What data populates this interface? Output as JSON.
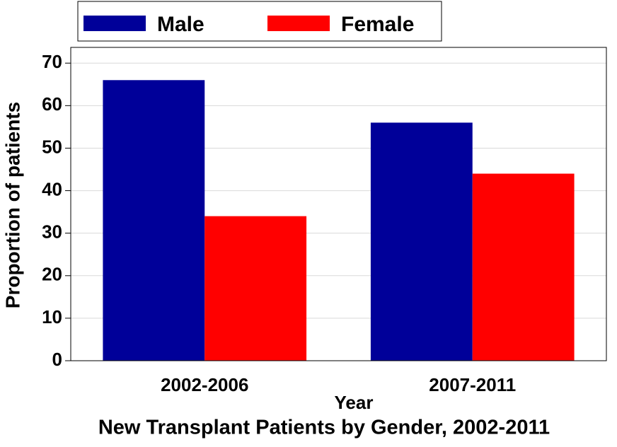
{
  "chart_data": {
    "type": "bar",
    "title": "New Transplant Patients by Gender, 2002-2011",
    "x_label": "Year",
    "y_label": "Proportion of patients",
    "categories": [
      "2002-2006",
      "2007-2011"
    ],
    "series": [
      {
        "name": "Male",
        "color": "#000099",
        "values": [
          66,
          56
        ]
      },
      {
        "name": "Female",
        "color": "#ff0000",
        "values": [
          34,
          44
        ]
      }
    ],
    "ylim": [
      0,
      73.7
    ],
    "yticks": [
      0,
      10,
      20,
      30,
      40,
      50,
      60,
      70
    ],
    "grid": true,
    "legend": "top"
  }
}
